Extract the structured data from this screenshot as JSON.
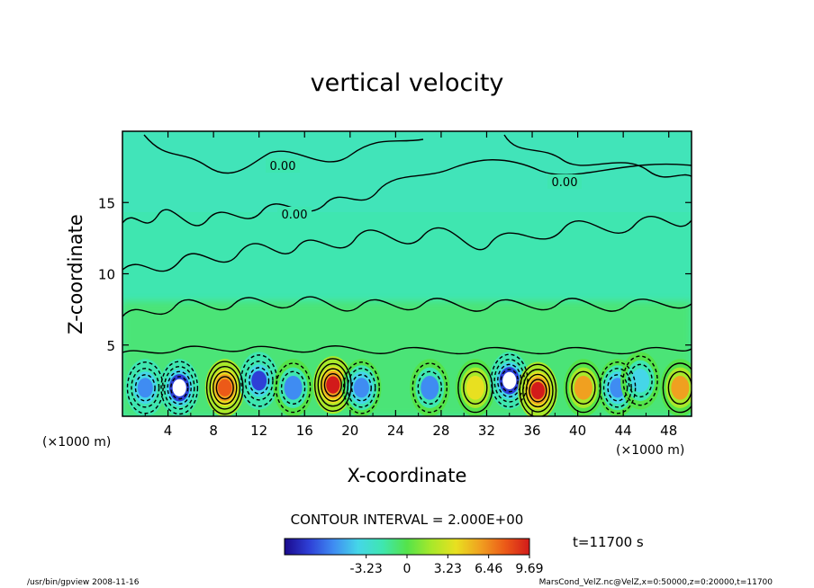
{
  "chart_data": {
    "type": "heatmap",
    "title": "vertical velocity",
    "xlabel": "X-coordinate",
    "ylabel": "Z-coordinate",
    "x_unit_left": "(×1000 m)",
    "x_unit_right": "(×1000 m)",
    "x_ticks": [
      "4",
      "8",
      "12",
      "16",
      "20",
      "24",
      "28",
      "32",
      "36",
      "40",
      "44",
      "48"
    ],
    "y_ticks": [
      "5",
      "10",
      "15"
    ],
    "xlim": [
      0,
      50
    ],
    "ylim": [
      0,
      20
    ],
    "contour_interval_text": "CONTOUR INTERVAL = 2.000E+00",
    "contour_labels": [
      "0.00",
      "0.00",
      "0.00"
    ],
    "time_text": "t=11700 s",
    "colorbar": {
      "min": -9.69,
      "max": 9.69,
      "tick_labels": [
        "-3.23",
        "0",
        "3.23",
        "6.46",
        "9.69"
      ],
      "colors": [
        "#1a0a8c",
        "#2e3fd6",
        "#3f8cf2",
        "#45d6e8",
        "#3fe6b0",
        "#54e34a",
        "#a8e82a",
        "#e8e020",
        "#f0a020",
        "#ec5a18",
        "#d21a1a"
      ]
    },
    "cells": [
      {
        "x": 2,
        "z": 2,
        "w": -6.5
      },
      {
        "x": 5,
        "z": 2,
        "w": -9.69
      },
      {
        "x": 9,
        "z": 2,
        "w": 8.0
      },
      {
        "x": 12,
        "z": 2.5,
        "w": -7.0
      },
      {
        "x": 15,
        "z": 2,
        "w": -5.0
      },
      {
        "x": 18.5,
        "z": 2.2,
        "w": 9.0
      },
      {
        "x": 21,
        "z": 2,
        "w": -5.5
      },
      {
        "x": 27,
        "z": 2,
        "w": -5.0
      },
      {
        "x": 31,
        "z": 2,
        "w": 4.5
      },
      {
        "x": 34,
        "z": 2.5,
        "w": -9.69
      },
      {
        "x": 36.5,
        "z": 1.8,
        "w": 9.0
      },
      {
        "x": 40.5,
        "z": 2,
        "w": 5.0
      },
      {
        "x": 43.5,
        "z": 2,
        "w": -5.5
      },
      {
        "x": 45.5,
        "z": 2.5,
        "w": -4.0
      },
      {
        "x": 49,
        "z": 2,
        "w": 5.0
      }
    ]
  },
  "footer": {
    "left": "/usr/bin/gpview   2008-11-16",
    "right": "MarsCond_VelZ.nc@VelZ,x=0:50000,z=0:20000,t=11700"
  }
}
